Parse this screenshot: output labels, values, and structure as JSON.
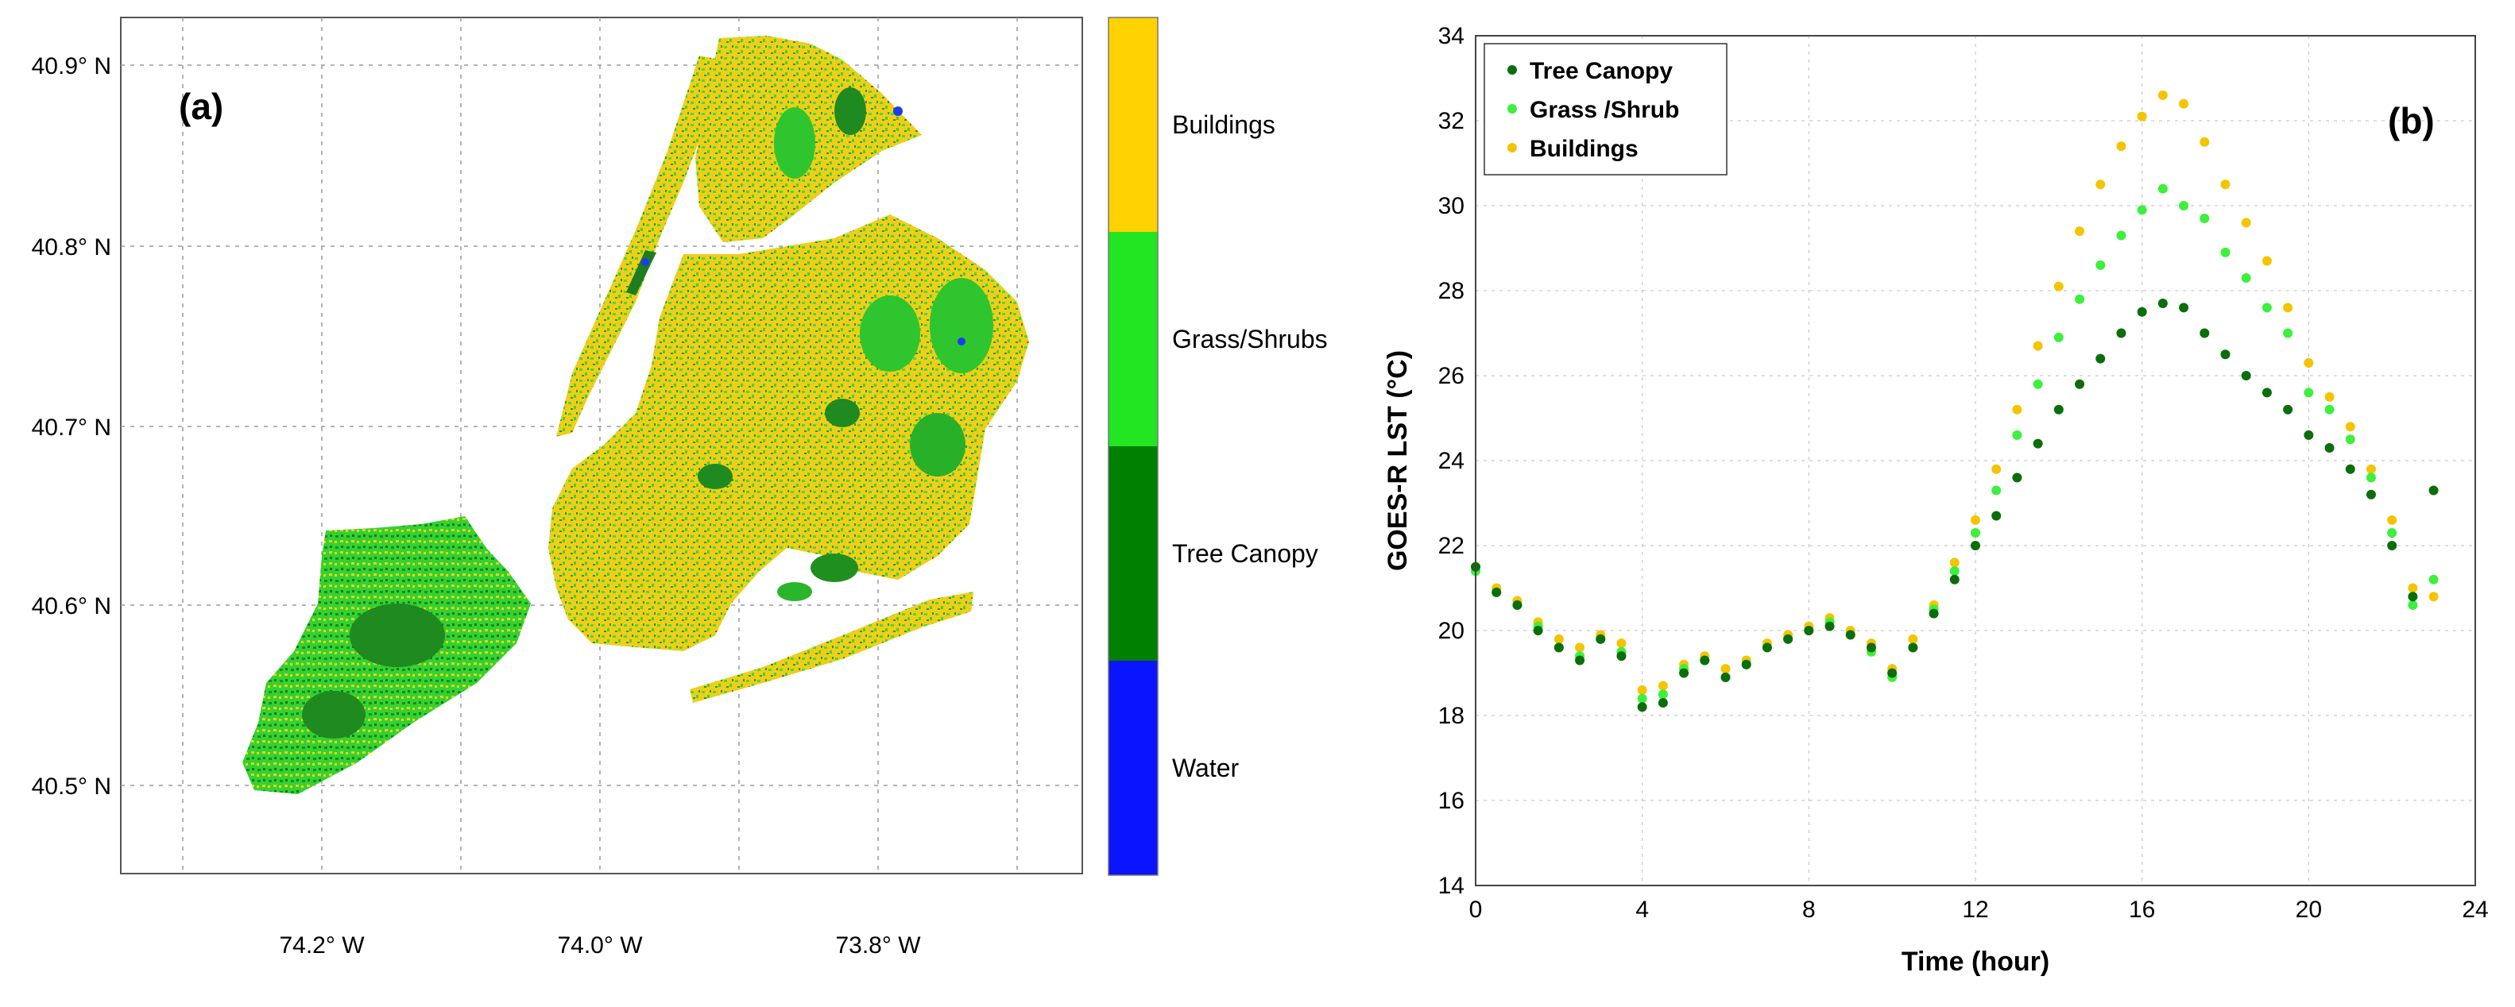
{
  "chart_data": [
    {
      "type": "map",
      "panel_label": "(a)",
      "y_ticks": [
        "40.9° N",
        "40.8° N",
        "40.7° N",
        "40.6° N",
        "40.5° N"
      ],
      "y_values": [
        40.9,
        40.8,
        40.7,
        40.6,
        40.5
      ],
      "x_ticks": [
        "74.2° W",
        "74.0° W",
        "73.8° W"
      ],
      "x_values": [
        -74.2,
        -74.0,
        -73.8
      ],
      "xlim": [
        -74.3,
        -73.7
      ],
      "ylim": [
        40.45,
        40.93
      ],
      "grid": true,
      "legend": {
        "placement": "right",
        "entries": [
          {
            "label": "Buildings",
            "color": "#ffd200"
          },
          {
            "label": "Grass/Shrubs",
            "color": "#22e622"
          },
          {
            "label": "Tree Canopy",
            "color": "#008000"
          },
          {
            "label": "Water",
            "color": "#0a14ff"
          }
        ]
      }
    },
    {
      "type": "scatter",
      "panel_label": "(b)",
      "xlabel": "Time (hour)",
      "ylabel": "GOES-R LST (°C)",
      "xlim": [
        0,
        24
      ],
      "ylim": [
        14,
        34
      ],
      "xticks": [
        0,
        4,
        8,
        12,
        16,
        20,
        24
      ],
      "yticks": [
        14,
        16,
        18,
        20,
        22,
        24,
        26,
        28,
        30,
        32,
        34
      ],
      "grid": true,
      "legend_placement": "top-left",
      "x": [
        0,
        0.5,
        1,
        1.5,
        2,
        2.5,
        3,
        3.5,
        4,
        4.5,
        5,
        5.5,
        6,
        6.5,
        7,
        7.5,
        8,
        8.5,
        9,
        9.5,
        10,
        10.5,
        11,
        11.5,
        12,
        12.5,
        13,
        13.5,
        14,
        14.5,
        15,
        15.5,
        16,
        16.5,
        17,
        17.5,
        18,
        18.5,
        19,
        19.5,
        20,
        20.5,
        21,
        21.5,
        22,
        22.5,
        23
      ],
      "series": [
        {
          "name": "Tree Canopy",
          "color": "#0a6e0a",
          "values": [
            21.5,
            20.9,
            20.6,
            20.0,
            19.6,
            19.3,
            19.8,
            19.4,
            18.2,
            18.3,
            19.0,
            19.3,
            18.9,
            19.2,
            19.6,
            19.8,
            20.0,
            20.1,
            19.9,
            19.6,
            19.0,
            19.6,
            20.4,
            21.2,
            22.0,
            22.7,
            23.6,
            24.4,
            25.2,
            25.8,
            26.4,
            27.0,
            27.5,
            27.7,
            27.6,
            27.0,
            26.5,
            26.0,
            25.6,
            25.2,
            24.6,
            24.3,
            23.8,
            23.2,
            22.0,
            20.8,
            23.3
          ]
        },
        {
          "name": "Grass /Shrub",
          "color": "#3cf03c",
          "values": [
            21.4,
            20.9,
            20.6,
            20.1,
            19.6,
            19.4,
            19.8,
            19.5,
            18.4,
            18.5,
            19.1,
            19.3,
            18.9,
            19.2,
            19.6,
            19.8,
            20.0,
            20.2,
            19.9,
            19.5,
            18.9,
            19.6,
            20.5,
            21.4,
            22.3,
            23.3,
            24.6,
            25.8,
            26.9,
            27.8,
            28.6,
            29.3,
            29.9,
            30.4,
            30.0,
            29.7,
            28.9,
            28.3,
            27.6,
            27.0,
            25.6,
            25.2,
            24.5,
            23.6,
            22.3,
            20.6,
            21.2
          ]
        },
        {
          "name": "Buildings",
          "color": "#f5c400",
          "values": [
            21.5,
            21.0,
            20.7,
            20.2,
            19.8,
            19.6,
            19.9,
            19.7,
            18.6,
            18.7,
            19.2,
            19.4,
            19.1,
            19.3,
            19.7,
            19.9,
            20.1,
            20.3,
            20.0,
            19.7,
            19.1,
            19.8,
            20.6,
            21.6,
            22.6,
            23.8,
            25.2,
            26.7,
            28.1,
            29.4,
            30.5,
            31.4,
            32.1,
            32.6,
            32.4,
            31.5,
            30.5,
            29.6,
            28.7,
            27.6,
            26.3,
            25.5,
            24.8,
            23.8,
            22.6,
            21.0,
            20.8
          ]
        }
      ]
    }
  ]
}
